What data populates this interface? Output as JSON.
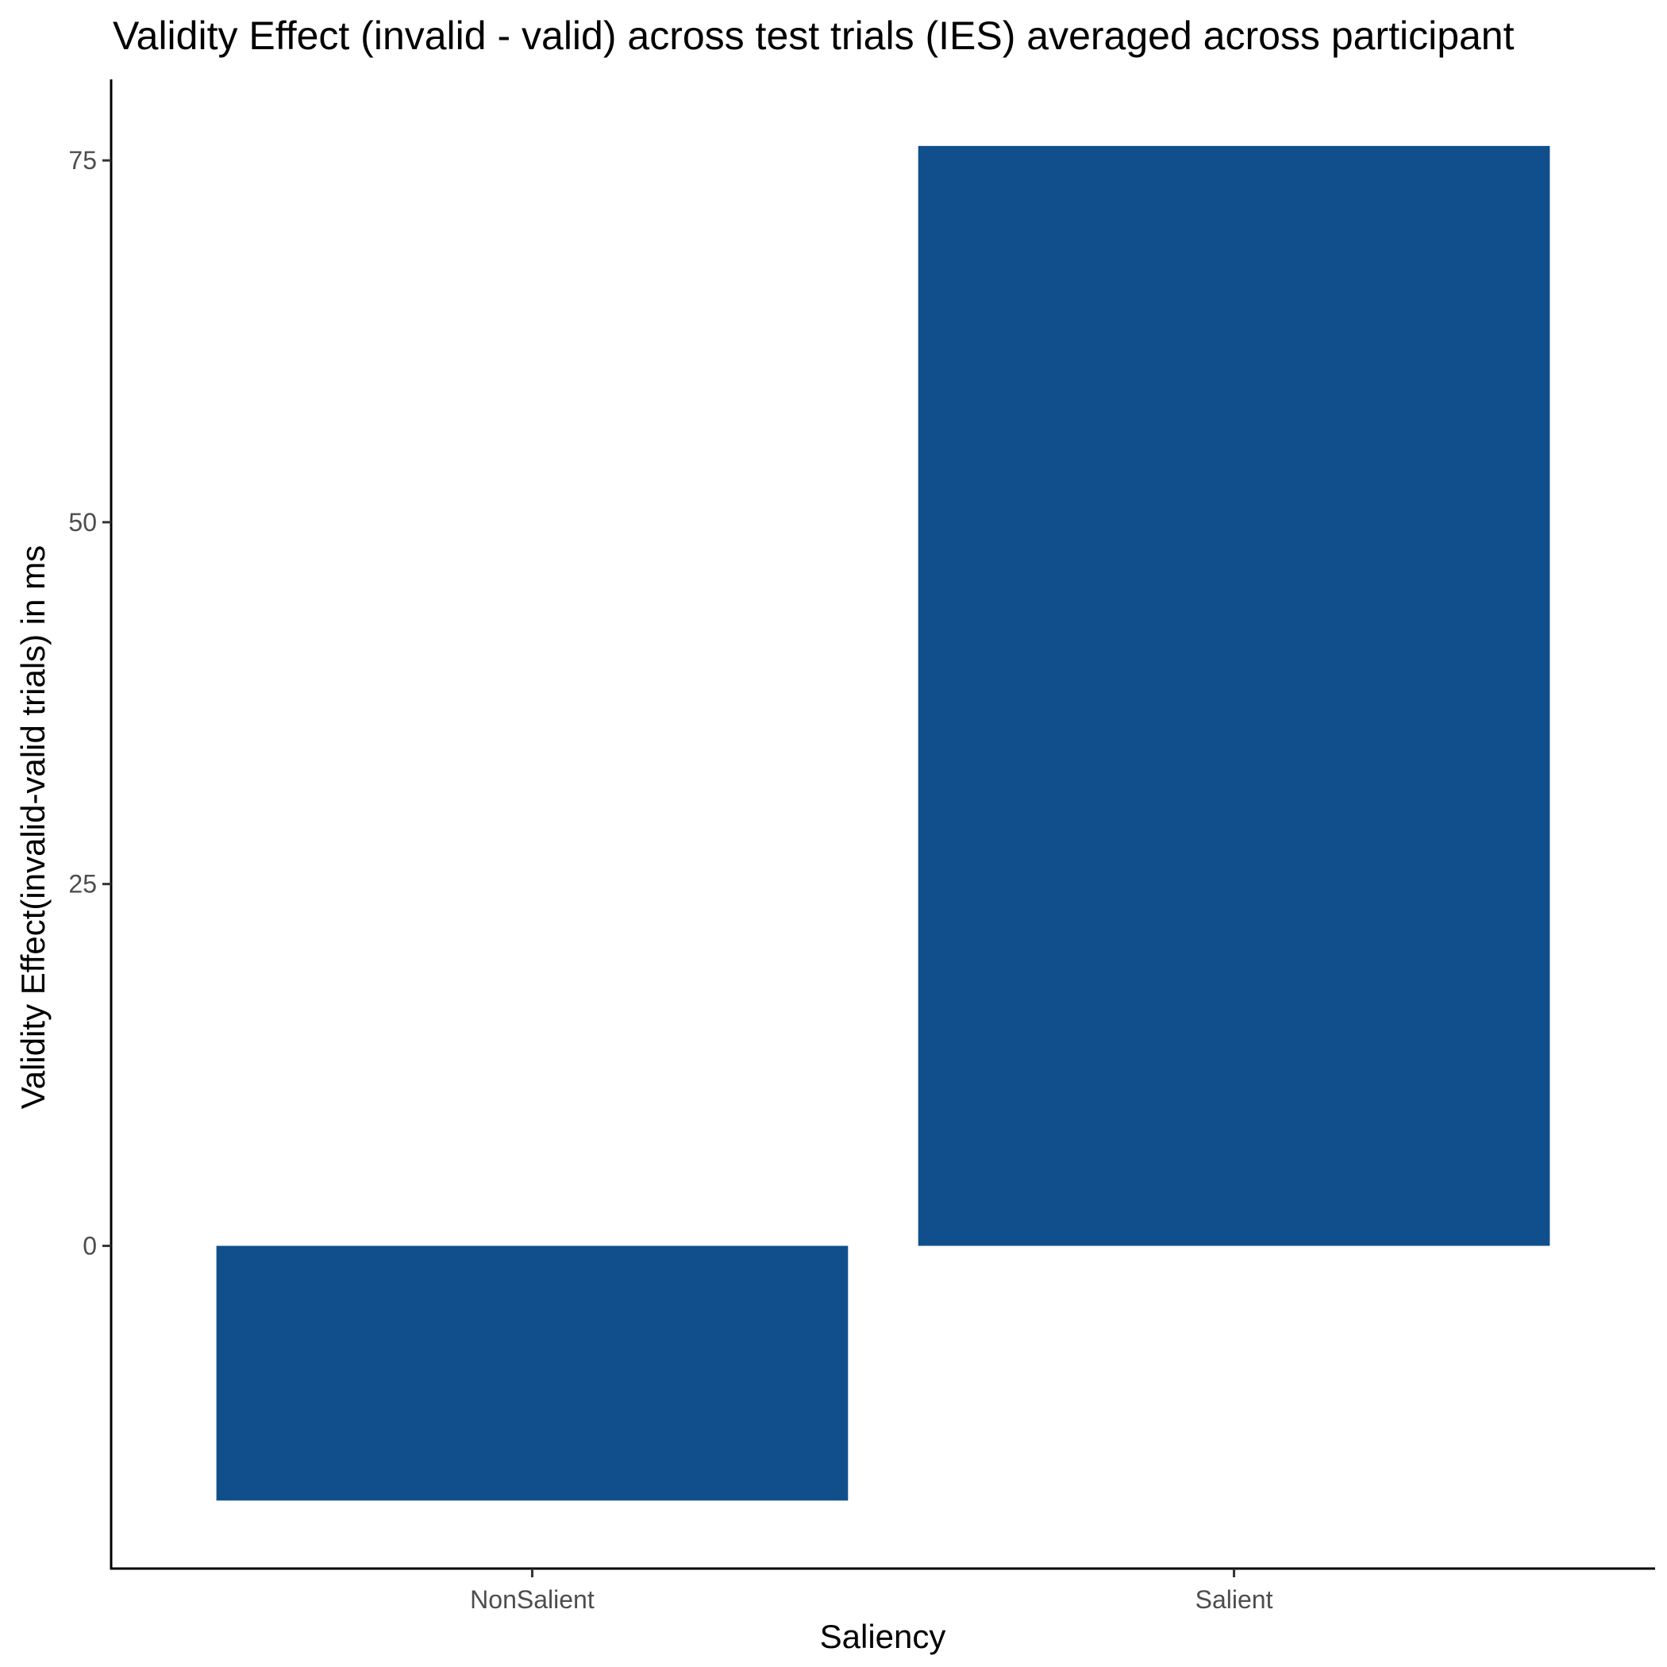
{
  "chart_data": {
    "type": "bar",
    "title": "Validity Effect (invalid - valid) across test trials (IES) averaged across participant",
    "xlabel": "Saliency",
    "ylabel": "Validity Effect(invalid-valid trials) in ms",
    "categories": [
      "NonSalient",
      "Salient"
    ],
    "values": [
      -17.6,
      76.0
    ],
    "ylim": [
      -22.3,
      80.6
    ],
    "yticks": [
      0,
      25,
      50,
      75
    ],
    "grid": false,
    "legend": "none",
    "bar_color": "#104f8c"
  }
}
